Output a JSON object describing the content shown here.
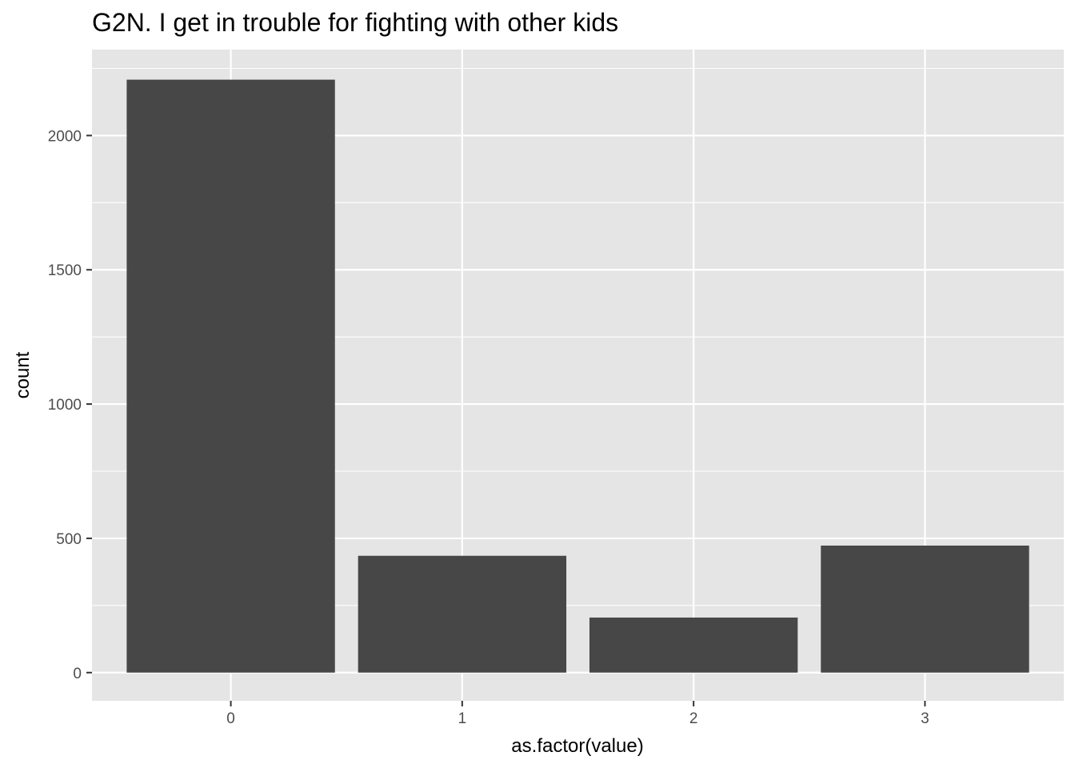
{
  "chart_data": {
    "type": "bar",
    "title": "G2N. I get in trouble for fighting with other kids",
    "xlabel": "as.factor(value)",
    "ylabel": "count",
    "categories": [
      "0",
      "1",
      "2",
      "3"
    ],
    "values": [
      2208,
      435,
      205,
      473
    ],
    "ylim": [
      -105,
      2320
    ],
    "yticks": [
      0,
      500,
      1000,
      1500,
      2000
    ],
    "yticks_minor": [
      250,
      750,
      1250,
      1750,
      2250
    ],
    "grid": true,
    "legend": "none",
    "colors": {
      "bar": "#474747",
      "panel": "#e5e5e5",
      "grid": "#ffffff",
      "tick_text": "#4d4d4d",
      "tick_mark": "#333333"
    }
  }
}
